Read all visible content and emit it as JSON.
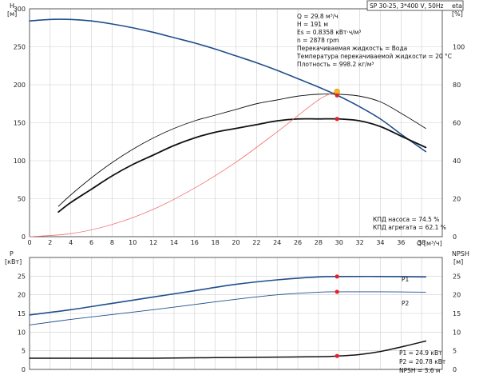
{
  "title": "SP 30-25, 3*400 V, 50Hz",
  "colors": {
    "head": "#1f4e8c",
    "eff": "#111111",
    "req": "#f07070",
    "marker": "#e8202a",
    "dot": "#f5b820",
    "grid": "#cfcfcf"
  },
  "axes": {
    "x_label": "Q [м³/ч]",
    "h_label": "H",
    "h_unit": "[м]",
    "eta_label": "eta",
    "eta_unit": "[%]",
    "p_label": "P",
    "p_unit": "[кВт]",
    "npsh_label": "NPSH",
    "npsh_unit": "[м]"
  },
  "info_lines": [
    "Q = 29.8 м³/ч",
    "H = 191 м",
    "Es = 0.8358 кВт·ч/м³",
    "n = 2878 rpm",
    "Перекачиваемая жидкость = Вода",
    "Температура перекачиваемой жидкости = 20 °C",
    "Плотность = 998.2 кг/м³"
  ],
  "eff_labels": [
    "КПД насоса = 74.5 %",
    "КПД агрегата = 62.1 %"
  ],
  "power_labels": [
    "P1 = 24.9 кВт",
    "P2 = 20.78 кВт",
    "NPSH = 3.6 м"
  ],
  "series_tags": [
    "P1",
    "P2"
  ],
  "chart_data": [
    {
      "type": "line",
      "xlim": [
        0,
        40
      ],
      "ylim": [
        0,
        300
      ],
      "ylim_right": [
        0,
        120
      ],
      "x_ticks": [
        0,
        2,
        4,
        6,
        8,
        10,
        12,
        14,
        16,
        18,
        20,
        22,
        24,
        26,
        28,
        30,
        32,
        34,
        36,
        38
      ],
      "y_ticks": [
        0,
        50,
        100,
        150,
        200,
        250,
        300
      ],
      "y_right_ticks": [
        0,
        20,
        40,
        60,
        80,
        100
      ],
      "grid": true,
      "series": [
        {
          "axis": "left",
          "style": "head",
          "x": [
            0,
            2,
            4,
            6,
            8,
            10,
            12,
            14,
            16,
            18,
            20,
            22,
            24,
            26,
            28,
            30,
            32,
            34,
            36,
            38.4
          ],
          "y": [
            284,
            286,
            286,
            284,
            280,
            275,
            269,
            262,
            255,
            247,
            238,
            229,
            219,
            208,
            197,
            185,
            171,
            155,
            135,
            112
          ]
        },
        {
          "axis": "right",
          "style": "eff_thin",
          "x": [
            2.8,
            4,
            6,
            8,
            10,
            12,
            14,
            16,
            18,
            20,
            22,
            24,
            26,
            28,
            30,
            32,
            34,
            36,
            38.4
          ],
          "y": [
            16,
            22,
            31,
            39,
            46,
            52,
            57,
            61,
            64,
            67,
            70,
            72,
            74,
            75,
            75,
            74,
            71,
            65,
            57
          ]
        },
        {
          "axis": "right",
          "style": "eff_thick",
          "x": [
            2.8,
            4,
            6,
            8,
            10,
            12,
            14,
            16,
            18,
            20,
            22,
            24,
            26,
            28,
            30,
            32,
            34,
            36,
            38.4
          ],
          "y": [
            13,
            18,
            25,
            32,
            38,
            43,
            48,
            52,
            55,
            57,
            59,
            61,
            62,
            62,
            62,
            61,
            58,
            53,
            47
          ]
        },
        {
          "axis": "left",
          "style": "req",
          "x": [
            0,
            4,
            8,
            12,
            16,
            20,
            24,
            28,
            29.8
          ],
          "y": [
            0,
            4,
            16,
            36,
            64,
            98,
            138,
            180,
            191
          ]
        }
      ],
      "markers": [
        {
          "x": 29.8,
          "y": 191,
          "axis": "left",
          "kind": "dot"
        },
        {
          "x": 29.8,
          "y": 186,
          "axis": "left",
          "kind": "point"
        },
        {
          "x": 29.8,
          "y": 62,
          "axis": "right",
          "kind": "point"
        }
      ]
    },
    {
      "type": "line",
      "xlim": [
        0,
        40
      ],
      "ylim": [
        0,
        30
      ],
      "y_ticks": [
        0,
        5,
        10,
        15,
        20,
        25
      ],
      "y_right_ticks": [
        0,
        5,
        10,
        15,
        20,
        25
      ],
      "grid": true,
      "series": [
        {
          "axis": "left",
          "style": "p1",
          "x": [
            0,
            4,
            8,
            12,
            16,
            20,
            24,
            28,
            30,
            34,
            38.4
          ],
          "y": [
            14.6,
            16.0,
            17.7,
            19.4,
            21.1,
            22.8,
            24.0,
            24.8,
            24.9,
            24.9,
            24.8
          ]
        },
        {
          "axis": "left",
          "style": "p2",
          "x": [
            0,
            4,
            8,
            12,
            16,
            20,
            24,
            28,
            30,
            34,
            38.4
          ],
          "y": [
            11.9,
            13.4,
            14.7,
            16.0,
            17.4,
            18.8,
            20.0,
            20.7,
            20.8,
            20.8,
            20.7
          ]
        },
        {
          "axis": "right",
          "style": "npsh",
          "x": [
            0,
            4,
            8,
            12,
            16,
            20,
            24,
            28,
            30,
            32,
            34,
            36,
            38.4
          ],
          "y": [
            3.0,
            3.0,
            3.0,
            3.0,
            3.1,
            3.2,
            3.3,
            3.4,
            3.6,
            4.0,
            4.8,
            6.0,
            7.6
          ]
        }
      ],
      "markers": [
        {
          "x": 29.8,
          "y": 24.9,
          "axis": "left",
          "kind": "point"
        },
        {
          "x": 29.8,
          "y": 20.8,
          "axis": "left",
          "kind": "point"
        },
        {
          "x": 29.8,
          "y": 3.6,
          "axis": "right",
          "kind": "point"
        }
      ]
    }
  ]
}
